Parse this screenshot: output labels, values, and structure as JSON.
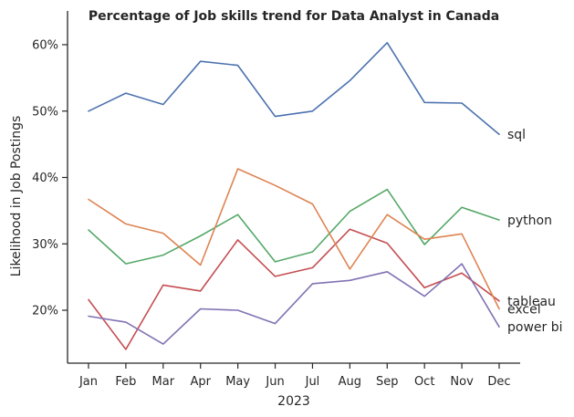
{
  "chart_data": {
    "type": "line",
    "title": "Percentage of Job skills trend for Data Analyst in Canada",
    "xlabel": "2023",
    "ylabel": "Likelihood in Job Postings",
    "categories": [
      "Jan",
      "Feb",
      "Mar",
      "Apr",
      "May",
      "Jun",
      "Jul",
      "Aug",
      "Sep",
      "Oct",
      "Nov",
      "Dec"
    ],
    "y_ticks": [
      20,
      30,
      40,
      50,
      60
    ],
    "y_tick_labels": [
      "20%",
      "30%",
      "40%",
      "50%",
      "60%"
    ],
    "ylim": [
      11.7,
      62.8
    ],
    "grid": false,
    "legend": "none (labels at line ends)",
    "series": [
      {
        "name": "sql",
        "color": "#4c72b0",
        "values": [
          50.0,
          52.7,
          51.0,
          57.5,
          56.9,
          49.2,
          50.0,
          54.6,
          60.3,
          51.3,
          51.2,
          46.5
        ]
      },
      {
        "name": "python",
        "color": "#55a868",
        "values": [
          32.1,
          27.0,
          28.3,
          31.2,
          34.4,
          27.3,
          28.8,
          34.9,
          38.2,
          29.9,
          35.5,
          33.6
        ]
      },
      {
        "name": "tableau",
        "color": "#c44e52",
        "values": [
          21.6,
          14.1,
          23.8,
          22.9,
          30.6,
          25.1,
          26.4,
          32.2,
          30.1,
          23.4,
          25.6,
          21.4
        ]
      },
      {
        "name": "excel",
        "color": "#dd8452",
        "values": [
          36.7,
          33.0,
          31.6,
          26.8,
          41.3,
          38.8,
          36.0,
          26.2,
          34.4,
          30.7,
          31.5,
          20.2
        ]
      },
      {
        "name": "power bi",
        "color": "#8172b3",
        "values": [
          19.1,
          18.2,
          14.9,
          20.2,
          20.0,
          18.0,
          24.0,
          24.5,
          25.8,
          22.1,
          27.0,
          17.5
        ]
      }
    ]
  }
}
